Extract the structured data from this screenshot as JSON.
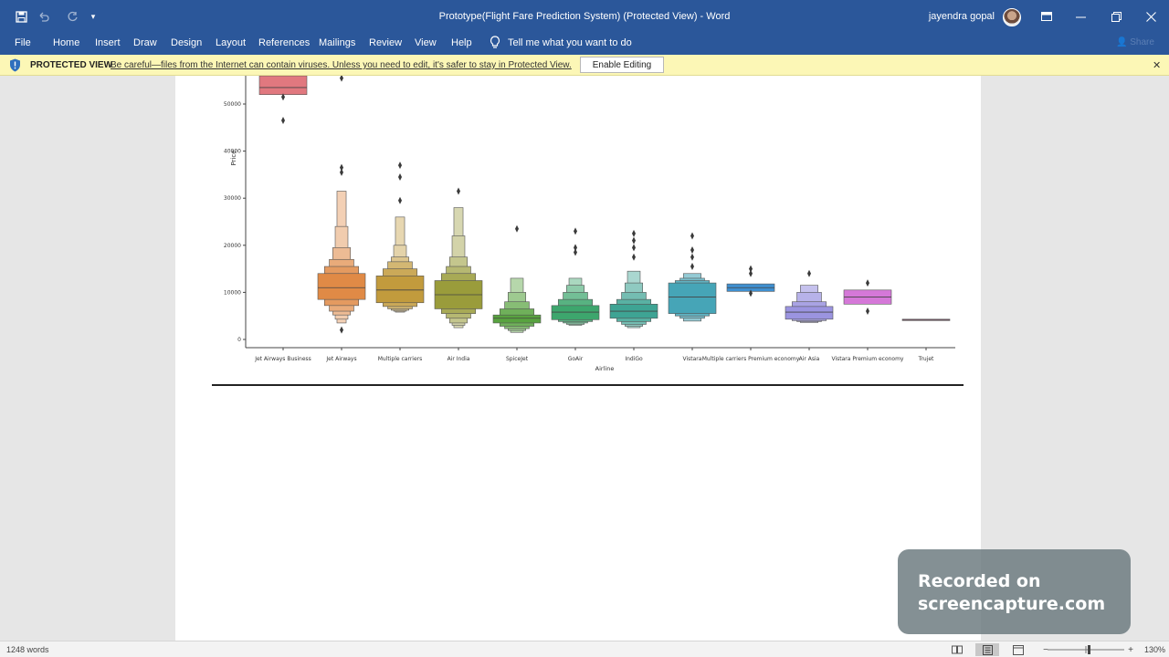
{
  "window": {
    "title": "Prototype(Flight Fare Prediction System) (Protected View)  -  Word",
    "user_name": "jayendra gopal"
  },
  "ribbon": {
    "tabs": [
      "File",
      "Home",
      "Insert",
      "Draw",
      "Design",
      "Layout",
      "References",
      "Mailings",
      "Review",
      "View",
      "Help"
    ],
    "tell_me": "Tell me what you want to do",
    "share": "Share"
  },
  "protected_view": {
    "title": "PROTECTED VIEW",
    "message": "Be careful—files from the Internet can contain viruses. Unless you need to edit, it's safer to stay in Protected View.",
    "enable_button": "Enable Editing"
  },
  "chart_data": {
    "type": "boxen",
    "xlabel": "Airline",
    "ylabel": "Price",
    "ylim": [
      0,
      55000
    ],
    "yticks": [
      0,
      10000,
      20000,
      30000,
      40000,
      50000
    ],
    "categories": [
      "Jet Airways Business",
      "Jet Airways",
      "Multiple carriers",
      "Air India",
      "SpiceJet",
      "GoAir",
      "IndiGo",
      "Vistara",
      "Multiple carriers Premium economy",
      "Air Asia",
      "Vistara Premium economy",
      "Trujet"
    ],
    "colors": [
      "#e1787f",
      "#e08a46",
      "#c29b3d",
      "#9a9c3b",
      "#58a33f",
      "#3da66d",
      "#3ea494",
      "#46a5b7",
      "#3f8fd0",
      "#9b94e0",
      "#d578d8",
      "#d97aa8"
    ],
    "series": [
      {
        "median": 53500,
        "q1": 52000,
        "q3": 56000,
        "boxes": [
          [
            52000,
            56000
          ]
        ],
        "outliers": [
          51500,
          46500
        ]
      },
      {
        "median": 11000,
        "q1": 8500,
        "q3": 14000,
        "boxes": [
          [
            8500,
            14000
          ],
          [
            7200,
            15500
          ],
          [
            6000,
            17000
          ],
          [
            5200,
            19500
          ],
          [
            4300,
            24000
          ],
          [
            3500,
            31500
          ]
        ],
        "outliers": [
          2000,
          35500,
          36500,
          55500
        ]
      },
      {
        "median": 10500,
        "q1": 7800,
        "q3": 13500,
        "boxes": [
          [
            7800,
            13500
          ],
          [
            7000,
            15000
          ],
          [
            6500,
            16500
          ],
          [
            6200,
            17500
          ],
          [
            6000,
            20000
          ],
          [
            5800,
            26000
          ]
        ],
        "outliers": [
          29500,
          34500,
          37000
        ]
      },
      {
        "median": 9500,
        "q1": 6500,
        "q3": 12500,
        "boxes": [
          [
            6500,
            12500
          ],
          [
            5500,
            14000
          ],
          [
            4500,
            15500
          ],
          [
            3500,
            17500
          ],
          [
            3000,
            22000
          ],
          [
            2500,
            28000
          ]
        ],
        "outliers": [
          31500
        ]
      },
      {
        "median": 4500,
        "q1": 3500,
        "q3": 5200,
        "boxes": [
          [
            3500,
            5200
          ],
          [
            2800,
            6500
          ],
          [
            2300,
            8000
          ],
          [
            1900,
            10000
          ],
          [
            1500,
            13000
          ]
        ],
        "outliers": [
          23500
        ]
      },
      {
        "median": 5800,
        "q1": 4200,
        "q3": 7200,
        "boxes": [
          [
            4200,
            7200
          ],
          [
            3800,
            8500
          ],
          [
            3500,
            10000
          ],
          [
            3200,
            11500
          ],
          [
            3000,
            13000
          ]
        ],
        "outliers": [
          18500,
          19500,
          23000
        ]
      },
      {
        "median": 6000,
        "q1": 4500,
        "q3": 7500,
        "boxes": [
          [
            4500,
            7500
          ],
          [
            3800,
            8500
          ],
          [
            3200,
            10000
          ],
          [
            2800,
            12000
          ],
          [
            2500,
            14500
          ]
        ],
        "outliers": [
          17500,
          19500,
          21000,
          22500
        ]
      },
      {
        "median": 9000,
        "q1": 5500,
        "q3": 12000,
        "boxes": [
          [
            5500,
            12000
          ],
          [
            5000,
            12500
          ],
          [
            4500,
            13000
          ],
          [
            3900,
            14000
          ]
        ],
        "outliers": [
          15500,
          17500,
          19000,
          22000
        ]
      },
      {
        "median": 11000,
        "q1": 10200,
        "q3": 11800,
        "boxes": [
          [
            10200,
            11800
          ]
        ],
        "outliers": [
          9800,
          14000,
          15000
        ]
      },
      {
        "median": 5800,
        "q1": 4300,
        "q3": 7000,
        "boxes": [
          [
            4300,
            7000
          ],
          [
            4000,
            8000
          ],
          [
            3800,
            10000
          ],
          [
            3600,
            11500
          ]
        ],
        "outliers": [
          14000
        ]
      },
      {
        "median": 9000,
        "q1": 7500,
        "q3": 10500,
        "boxes": [
          [
            7500,
            10500
          ]
        ],
        "outliers": [
          6000,
          12000
        ]
      },
      {
        "median": 4200,
        "q1": 4200,
        "q3": 4300,
        "boxes": [
          [
            4200,
            4300
          ]
        ],
        "outliers": []
      }
    ]
  },
  "status": {
    "word_count": "1248 words",
    "zoom": "130%"
  },
  "watermark": {
    "line1": "Recorded on",
    "line2": "screencapture.com"
  }
}
